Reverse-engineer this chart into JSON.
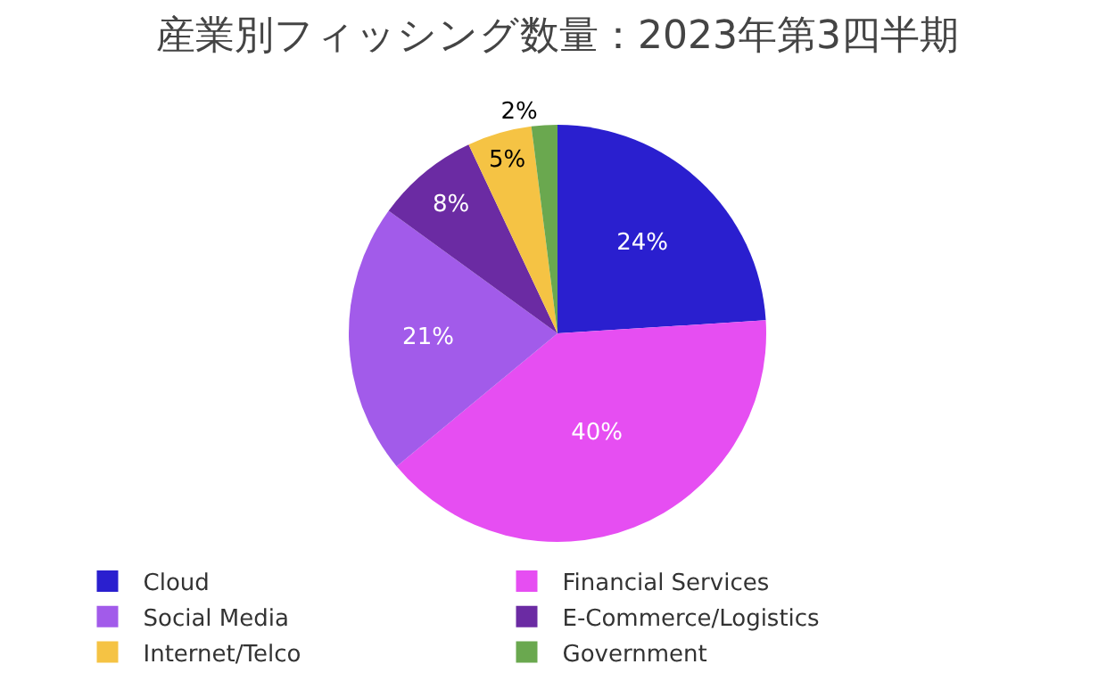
{
  "chart_data": {
    "type": "pie",
    "title": "産業別フィッシング数量：2023年第3四半期",
    "categories": [
      "Cloud",
      "Financial Services",
      "Social Media",
      "E-Commerce/Logistics",
      "Internet/Telco",
      "Government"
    ],
    "values": [
      24,
      40,
      21,
      8,
      5,
      2
    ],
    "colors": [
      "#2a1fcf",
      "#e64ef2",
      "#a25bea",
      "#6b2ba3",
      "#f5c344",
      "#6aa84f"
    ],
    "value_labels": [
      "24%",
      "40%",
      "21%",
      "8%",
      "5%",
      "2%"
    ],
    "legend": "bottom"
  }
}
